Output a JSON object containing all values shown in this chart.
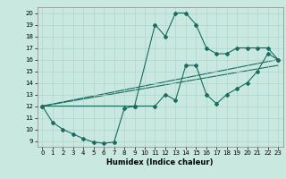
{
  "title": "",
  "xlabel": "Humidex (Indice chaleur)",
  "bg_color": "#c8e8e0",
  "grid_color": "#b0d4cc",
  "line_color": "#1a6b60",
  "marker_color": "#1a6b60",
  "xlim": [
    -0.5,
    23.5
  ],
  "ylim": [
    8.5,
    20.5
  ],
  "xticks": [
    0,
    1,
    2,
    3,
    4,
    5,
    6,
    7,
    8,
    9,
    10,
    11,
    12,
    13,
    14,
    15,
    16,
    17,
    18,
    19,
    20,
    21,
    22,
    23
  ],
  "yticks": [
    9,
    10,
    11,
    12,
    13,
    14,
    15,
    16,
    17,
    18,
    19,
    20
  ],
  "series1_x": [
    0,
    1,
    2,
    3,
    4,
    5,
    6,
    7,
    8,
    9,
    11,
    12,
    13,
    14,
    15,
    16,
    17,
    18,
    19,
    20,
    21,
    22,
    23
  ],
  "series1_y": [
    12,
    10.6,
    10,
    9.6,
    9.2,
    8.9,
    8.8,
    8.9,
    11.8,
    12.0,
    12.0,
    13.0,
    12.5,
    15.5,
    15.5,
    13.0,
    12.2,
    13.0,
    13.5,
    14.0,
    15.0,
    16.5,
    16.0
  ],
  "series2_x": [
    0,
    9,
    11,
    12,
    13,
    14,
    15,
    16,
    17,
    18,
    19,
    20,
    21,
    22,
    23
  ],
  "series2_y": [
    12,
    12.0,
    19.0,
    18.0,
    20.0,
    20.0,
    19.0,
    17.0,
    16.5,
    16.5,
    17.0,
    17.0,
    17.0,
    17.0,
    16.0
  ],
  "series3_x": [
    0,
    23
  ],
  "series3_y": [
    12,
    16.0
  ],
  "series4_x": [
    0,
    23
  ],
  "series4_y": [
    12,
    15.5
  ],
  "lw": 0.8,
  "ms": 2.0,
  "label_fontsize": 5.0,
  "xlabel_fontsize": 6.0
}
